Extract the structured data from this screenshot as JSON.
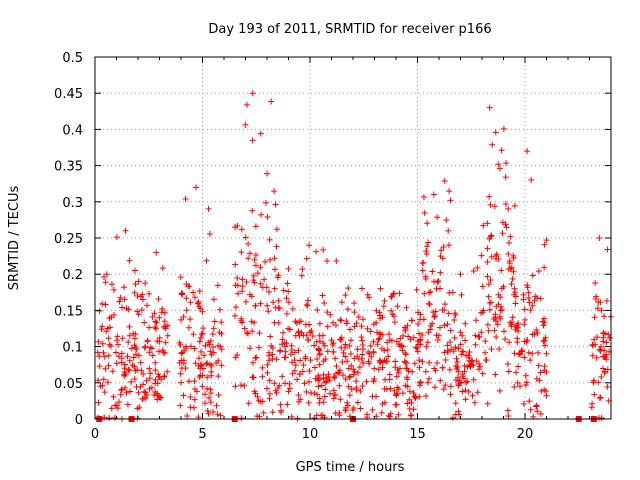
{
  "chart_data": {
    "type": "scatter",
    "title": "Day 193 of 2011, SRMTID for receiver p166",
    "xlabel": "GPS time / hours",
    "ylabel": "SRMTID / TECUs",
    "xlim": [
      0,
      24
    ],
    "ylim": [
      0,
      0.5
    ],
    "x_ticks": [
      0,
      5,
      10,
      15,
      20
    ],
    "x_tick_labels": [
      "0",
      "5",
      "10",
      "15",
      "20"
    ],
    "y_ticks": [
      0,
      0.05,
      0.1,
      0.15,
      0.2,
      0.25,
      0.3,
      0.35,
      0.4,
      0.45,
      0.5
    ],
    "y_tick_labels": [
      "0",
      "0.05",
      "0.1",
      "0.15",
      "0.2",
      "0.25",
      "0.3",
      "0.35",
      "0.4",
      "0.45",
      "0.5"
    ],
    "grid": true,
    "marker": "+",
    "color": "#ff0000",
    "activity_profile": [
      {
        "start": 0.1,
        "end": 3.4,
        "level": 0.09,
        "peak": 0.26
      },
      {
        "start": 3.9,
        "end": 5.9,
        "level": 0.1,
        "peak": 0.32
      },
      {
        "start": 6.5,
        "end": 8.6,
        "level": 0.13,
        "peak": 0.45
      },
      {
        "start": 8.6,
        "end": 12.0,
        "level": 0.08,
        "peak": 0.24
      },
      {
        "start": 12.0,
        "end": 15.2,
        "level": 0.08,
        "peak": 0.18
      },
      {
        "start": 15.2,
        "end": 16.6,
        "level": 0.15,
        "peak": 0.31
      },
      {
        "start": 16.6,
        "end": 17.6,
        "level": 0.07,
        "peak": 0.2
      },
      {
        "start": 17.6,
        "end": 19.5,
        "level": 0.16,
        "peak": 0.43
      },
      {
        "start": 19.5,
        "end": 21.0,
        "level": 0.1,
        "peak": 0.37
      },
      {
        "start": 23.1,
        "end": 24.0,
        "level": 0.09,
        "peak": 0.25
      }
    ],
    "gap_markers_x": [
      0.2,
      1.7,
      6.5,
      12.0,
      22.5,
      23.2
    ]
  }
}
